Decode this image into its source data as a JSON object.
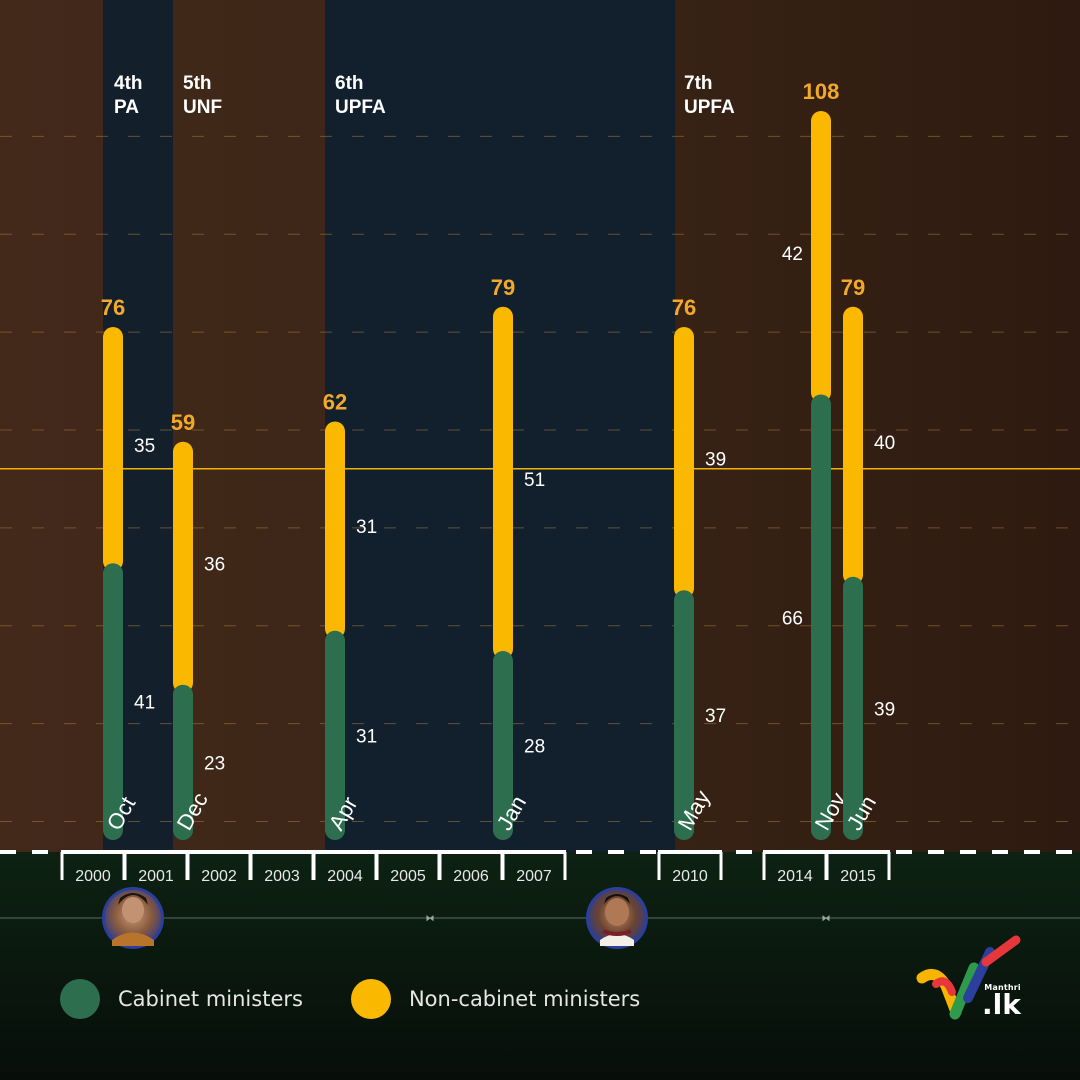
{
  "colors": {
    "cabinet": "#2d6e4e",
    "noncabinet": "#fbb800",
    "top_label": "#f2a92a",
    "ref_line": "#f2b400",
    "pa_bg": "#141f2c",
    "upfa_bg": "#12202d",
    "brown_bg": "#3a2415"
  },
  "chart_data": {
    "type": "bar",
    "stacked": true,
    "ylim": [
      0,
      120
    ],
    "reference_line": 55,
    "grid": "dashed",
    "legend_position": "bottom-left",
    "bars": [
      {
        "month": "Oct",
        "year": 2000,
        "cabinet": 41,
        "noncabinet": 35,
        "total": 76
      },
      {
        "month": "Dec",
        "year": 2001,
        "cabinet": 23,
        "noncabinet": 36,
        "total": 59
      },
      {
        "month": "Apr",
        "year": 2004,
        "cabinet": 31,
        "noncabinet": 31,
        "total": 62
      },
      {
        "month": "Jan",
        "year": 2007,
        "cabinet": 28,
        "noncabinet": 51,
        "total": 79
      },
      {
        "month": "May",
        "year": 2010,
        "cabinet": 37,
        "noncabinet": 39,
        "total": 76
      },
      {
        "month": "Nov",
        "year": 2014,
        "cabinet": 66,
        "noncabinet": 42,
        "total": 108
      },
      {
        "month": "Jun",
        "year": 2015,
        "cabinet": 39,
        "noncabinet": 40,
        "total": 79
      }
    ],
    "years": [
      "2000",
      "2001",
      "2002",
      "2003",
      "2004",
      "2005",
      "2006",
      "2007",
      "2010",
      "2014",
      "2015"
    ],
    "parliaments": [
      {
        "number": "4th",
        "party": "PA"
      },
      {
        "number": "5th",
        "party": "UNF"
      },
      {
        "number": "6th",
        "party": "UPFA"
      },
      {
        "number": "7th",
        "party": "UPFA"
      }
    ]
  },
  "legend": {
    "cabinet_label": "Cabinet ministers",
    "noncabinet_label": "Non-cabinet ministers"
  },
  "logo": {
    "small": "Manthri",
    "big": ".lk"
  }
}
